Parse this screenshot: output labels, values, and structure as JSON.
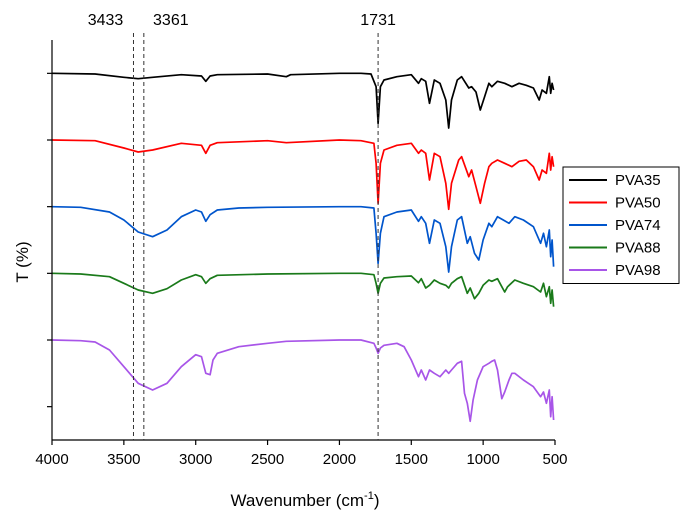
{
  "chart_data": {
    "type": "line",
    "title": "",
    "xlabel": "Wavenumber (cm",
    "xlabel_sup": "-1",
    "xlabel_close": ")",
    "ylabel": "T (%)",
    "xlim": [
      4000,
      500
    ],
    "x_reversed": true,
    "x_ticks": [
      "4000",
      "3500",
      "3000",
      "2500",
      "2000",
      "1500",
      "1000",
      "500"
    ],
    "x_tick_values": [
      4000,
      3500,
      3000,
      2500,
      2000,
      1500,
      1000,
      500
    ],
    "y_ticks_labeled": false,
    "y_range": [
      0,
      6
    ],
    "y_tick_values": [
      0.5,
      1.5,
      2.5,
      3.5,
      4.5,
      5.5
    ],
    "grid": false,
    "legend_position": "right",
    "reference_lines": [
      {
        "x": 3433,
        "label": "3433"
      },
      {
        "x": 3361,
        "label": "3361"
      },
      {
        "x": 1731,
        "label": "1731"
      }
    ],
    "series": [
      {
        "name": "PVA35",
        "color": "#000000",
        "baseline": 5.5,
        "points": [
          [
            4000,
            5.5
          ],
          [
            3700,
            5.49
          ],
          [
            3500,
            5.44
          ],
          [
            3400,
            5.42
          ],
          [
            3300,
            5.44
          ],
          [
            3100,
            5.48
          ],
          [
            2960,
            5.46
          ],
          [
            2930,
            5.38
          ],
          [
            2900,
            5.46
          ],
          [
            2850,
            5.48
          ],
          [
            2500,
            5.49
          ],
          [
            2370,
            5.45
          ],
          [
            2340,
            5.48
          ],
          [
            2000,
            5.5
          ],
          [
            1850,
            5.5
          ],
          [
            1780,
            5.49
          ],
          [
            1745,
            5.3
          ],
          [
            1731,
            4.75
          ],
          [
            1715,
            5.3
          ],
          [
            1690,
            5.4
          ],
          [
            1600,
            5.45
          ],
          [
            1500,
            5.48
          ],
          [
            1450,
            5.35
          ],
          [
            1430,
            5.42
          ],
          [
            1400,
            5.38
          ],
          [
            1373,
            5.05
          ],
          [
            1340,
            5.4
          ],
          [
            1300,
            5.35
          ],
          [
            1260,
            5.1
          ],
          [
            1240,
            4.68
          ],
          [
            1220,
            5.1
          ],
          [
            1180,
            5.4
          ],
          [
            1150,
            5.45
          ],
          [
            1100,
            5.28
          ],
          [
            1080,
            5.3
          ],
          [
            1050,
            5.22
          ],
          [
            1020,
            4.95
          ],
          [
            990,
            5.15
          ],
          [
            960,
            5.35
          ],
          [
            940,
            5.3
          ],
          [
            900,
            5.38
          ],
          [
            850,
            5.35
          ],
          [
            800,
            5.3
          ],
          [
            750,
            5.35
          ],
          [
            700,
            5.32
          ],
          [
            650,
            5.28
          ],
          [
            610,
            5.1
          ],
          [
            590,
            5.25
          ],
          [
            560,
            5.2
          ],
          [
            540,
            5.45
          ],
          [
            530,
            5.2
          ],
          [
            520,
            5.35
          ],
          [
            510,
            5.25
          ]
        ]
      },
      {
        "name": "PVA50",
        "color": "#ff0000",
        "baseline": 4.5,
        "points": [
          [
            4000,
            4.5
          ],
          [
            3700,
            4.49
          ],
          [
            3500,
            4.38
          ],
          [
            3400,
            4.32
          ],
          [
            3300,
            4.35
          ],
          [
            3100,
            4.45
          ],
          [
            2960,
            4.42
          ],
          [
            2930,
            4.3
          ],
          [
            2900,
            4.42
          ],
          [
            2850,
            4.46
          ],
          [
            2500,
            4.49
          ],
          [
            2370,
            4.46
          ],
          [
            2000,
            4.5
          ],
          [
            1850,
            4.49
          ],
          [
            1760,
            4.45
          ],
          [
            1745,
            4.15
          ],
          [
            1731,
            3.55
          ],
          [
            1715,
            4.15
          ],
          [
            1690,
            4.35
          ],
          [
            1600,
            4.42
          ],
          [
            1500,
            4.45
          ],
          [
            1450,
            4.3
          ],
          [
            1430,
            4.35
          ],
          [
            1400,
            4.3
          ],
          [
            1373,
            3.9
          ],
          [
            1340,
            4.3
          ],
          [
            1300,
            4.25
          ],
          [
            1260,
            3.85
          ],
          [
            1240,
            3.46
          ],
          [
            1220,
            3.85
          ],
          [
            1170,
            4.2
          ],
          [
            1150,
            4.25
          ],
          [
            1100,
            3.95
          ],
          [
            1080,
            4.05
          ],
          [
            1050,
            3.8
          ],
          [
            1020,
            3.55
          ],
          [
            990,
            3.85
          ],
          [
            960,
            4.1
          ],
          [
            940,
            4.15
          ],
          [
            900,
            4.2
          ],
          [
            850,
            4.15
          ],
          [
            800,
            4.1
          ],
          [
            750,
            4.18
          ],
          [
            700,
            4.2
          ],
          [
            650,
            4.1
          ],
          [
            610,
            3.9
          ],
          [
            590,
            4.05
          ],
          [
            560,
            4.0
          ],
          [
            540,
            4.3
          ],
          [
            530,
            4.05
          ],
          [
            520,
            4.25
          ],
          [
            510,
            4.1
          ]
        ]
      },
      {
        "name": "PVA74",
        "color": "#0055cc",
        "baseline": 3.5,
        "points": [
          [
            4000,
            3.5
          ],
          [
            3800,
            3.49
          ],
          [
            3600,
            3.42
          ],
          [
            3500,
            3.3
          ],
          [
            3400,
            3.12
          ],
          [
            3300,
            3.05
          ],
          [
            3200,
            3.15
          ],
          [
            3100,
            3.35
          ],
          [
            3000,
            3.45
          ],
          [
            2960,
            3.42
          ],
          [
            2930,
            3.28
          ],
          [
            2900,
            3.38
          ],
          [
            2850,
            3.45
          ],
          [
            2700,
            3.48
          ],
          [
            2500,
            3.49
          ],
          [
            2000,
            3.5
          ],
          [
            1850,
            3.5
          ],
          [
            1760,
            3.48
          ],
          [
            1745,
            3.1
          ],
          [
            1731,
            2.65
          ],
          [
            1715,
            3.1
          ],
          [
            1690,
            3.35
          ],
          [
            1600,
            3.42
          ],
          [
            1500,
            3.45
          ],
          [
            1450,
            3.28
          ],
          [
            1430,
            3.35
          ],
          [
            1400,
            3.25
          ],
          [
            1373,
            2.95
          ],
          [
            1340,
            3.3
          ],
          [
            1300,
            3.25
          ],
          [
            1260,
            2.9
          ],
          [
            1240,
            2.52
          ],
          [
            1220,
            2.9
          ],
          [
            1180,
            3.3
          ],
          [
            1150,
            3.35
          ],
          [
            1110,
            2.95
          ],
          [
            1090,
            3.05
          ],
          [
            1060,
            2.8
          ],
          [
            1030,
            2.7
          ],
          [
            1000,
            3.0
          ],
          [
            960,
            3.25
          ],
          [
            940,
            3.2
          ],
          [
            900,
            3.35
          ],
          [
            860,
            3.3
          ],
          [
            820,
            3.25
          ],
          [
            780,
            3.35
          ],
          [
            720,
            3.3
          ],
          [
            650,
            3.2
          ],
          [
            600,
            2.95
          ],
          [
            580,
            3.1
          ],
          [
            560,
            2.9
          ],
          [
            540,
            3.15
          ],
          [
            530,
            2.75
          ],
          [
            520,
            3.0
          ],
          [
            510,
            2.6
          ]
        ]
      },
      {
        "name": "PVA88",
        "color": "#1a7a1a",
        "baseline": 2.5,
        "points": [
          [
            4000,
            2.5
          ],
          [
            3800,
            2.49
          ],
          [
            3600,
            2.45
          ],
          [
            3500,
            2.35
          ],
          [
            3400,
            2.25
          ],
          [
            3300,
            2.2
          ],
          [
            3200,
            2.27
          ],
          [
            3100,
            2.4
          ],
          [
            3000,
            2.48
          ],
          [
            2960,
            2.45
          ],
          [
            2930,
            2.35
          ],
          [
            2900,
            2.42
          ],
          [
            2850,
            2.47
          ],
          [
            2500,
            2.49
          ],
          [
            2000,
            2.5
          ],
          [
            1850,
            2.5
          ],
          [
            1760,
            2.48
          ],
          [
            1745,
            2.35
          ],
          [
            1731,
            2.2
          ],
          [
            1715,
            2.35
          ],
          [
            1690,
            2.43
          ],
          [
            1600,
            2.45
          ],
          [
            1500,
            2.46
          ],
          [
            1450,
            2.36
          ],
          [
            1430,
            2.42
          ],
          [
            1400,
            2.28
          ],
          [
            1373,
            2.32
          ],
          [
            1340,
            2.4
          ],
          [
            1300,
            2.35
          ],
          [
            1260,
            2.32
          ],
          [
            1240,
            2.28
          ],
          [
            1220,
            2.35
          ],
          [
            1180,
            2.42
          ],
          [
            1150,
            2.45
          ],
          [
            1110,
            2.2
          ],
          [
            1090,
            2.28
          ],
          [
            1060,
            2.12
          ],
          [
            1030,
            2.2
          ],
          [
            1000,
            2.32
          ],
          [
            960,
            2.4
          ],
          [
            940,
            2.38
          ],
          [
            900,
            2.42
          ],
          [
            870,
            2.3
          ],
          [
            850,
            2.22
          ],
          [
            830,
            2.3
          ],
          [
            780,
            2.4
          ],
          [
            720,
            2.35
          ],
          [
            650,
            2.3
          ],
          [
            600,
            2.22
          ],
          [
            580,
            2.35
          ],
          [
            560,
            2.15
          ],
          [
            540,
            2.3
          ],
          [
            530,
            2.05
          ],
          [
            520,
            2.25
          ],
          [
            510,
            2.0
          ]
        ]
      },
      {
        "name": "PVA98",
        "color": "#a855e8",
        "baseline": 1.5,
        "points": [
          [
            4000,
            1.5
          ],
          [
            3800,
            1.49
          ],
          [
            3700,
            1.47
          ],
          [
            3600,
            1.35
          ],
          [
            3500,
            1.1
          ],
          [
            3400,
            0.85
          ],
          [
            3300,
            0.75
          ],
          [
            3200,
            0.85
          ],
          [
            3100,
            1.1
          ],
          [
            3000,
            1.28
          ],
          [
            2960,
            1.25
          ],
          [
            2930,
            1.0
          ],
          [
            2900,
            0.98
          ],
          [
            2880,
            1.2
          ],
          [
            2850,
            1.3
          ],
          [
            2700,
            1.4
          ],
          [
            2500,
            1.45
          ],
          [
            2370,
            1.48
          ],
          [
            2000,
            1.5
          ],
          [
            1850,
            1.5
          ],
          [
            1760,
            1.45
          ],
          [
            1745,
            1.38
          ],
          [
            1731,
            1.3
          ],
          [
            1715,
            1.38
          ],
          [
            1690,
            1.42
          ],
          [
            1600,
            1.45
          ],
          [
            1550,
            1.4
          ],
          [
            1500,
            1.2
          ],
          [
            1450,
            0.95
          ],
          [
            1430,
            1.05
          ],
          [
            1400,
            0.9
          ],
          [
            1373,
            1.05
          ],
          [
            1340,
            1.0
          ],
          [
            1300,
            0.95
          ],
          [
            1260,
            1.05
          ],
          [
            1240,
            1.0
          ],
          [
            1220,
            1.05
          ],
          [
            1180,
            1.15
          ],
          [
            1150,
            1.18
          ],
          [
            1130,
            0.7
          ],
          [
            1110,
            0.55
          ],
          [
            1090,
            0.28
          ],
          [
            1070,
            0.6
          ],
          [
            1040,
            0.9
          ],
          [
            1000,
            1.1
          ],
          [
            960,
            1.15
          ],
          [
            940,
            1.18
          ],
          [
            920,
            1.2
          ],
          [
            900,
            1.05
          ],
          [
            870,
            0.62
          ],
          [
            850,
            0.72
          ],
          [
            820,
            0.9
          ],
          [
            800,
            1.0
          ],
          [
            780,
            1.0
          ],
          [
            720,
            0.9
          ],
          [
            650,
            0.8
          ],
          [
            600,
            0.65
          ],
          [
            580,
            0.72
          ],
          [
            560,
            0.55
          ],
          [
            540,
            0.75
          ],
          [
            530,
            0.35
          ],
          [
            520,
            0.65
          ],
          [
            510,
            0.3
          ]
        ]
      }
    ]
  }
}
